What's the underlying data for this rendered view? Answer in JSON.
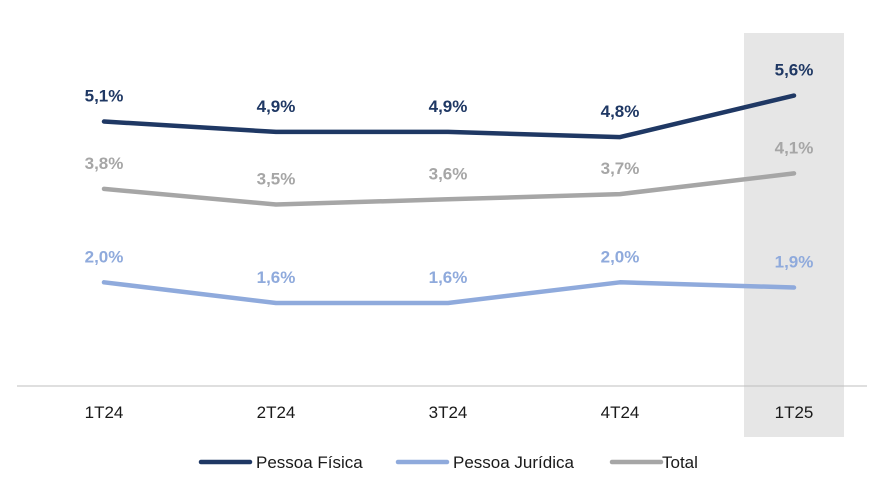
{
  "chart_data": {
    "type": "line",
    "categories": [
      "1T24",
      "2T24",
      "3T24",
      "4T24",
      "1T25"
    ],
    "highlighted_category": "1T25",
    "highlight_color": "#e6e6e6",
    "ylim": [
      0,
      7
    ],
    "grid": false,
    "legend_position": "bottom",
    "series": [
      {
        "name": "Pessoa Física",
        "color": "#1f3864",
        "values": [
          5.1,
          4.9,
          4.9,
          4.8,
          5.6
        ],
        "labels": [
          "5,1%",
          "4,9%",
          "4,9%",
          "4,8%",
          "5,6%"
        ]
      },
      {
        "name": "Pessoa Jurídica",
        "color": "#8faadc",
        "values": [
          2.0,
          1.6,
          1.6,
          2.0,
          1.9
        ],
        "labels": [
          "2,0%",
          "1,6%",
          "1,6%",
          "2,0%",
          "1,9%"
        ]
      },
      {
        "name": "Total",
        "color": "#a6a6a6",
        "values": [
          3.8,
          3.5,
          3.6,
          3.7,
          4.1
        ],
        "labels": [
          "3,8%",
          "3,5%",
          "3,6%",
          "3,7%",
          "4,1%"
        ]
      }
    ]
  }
}
